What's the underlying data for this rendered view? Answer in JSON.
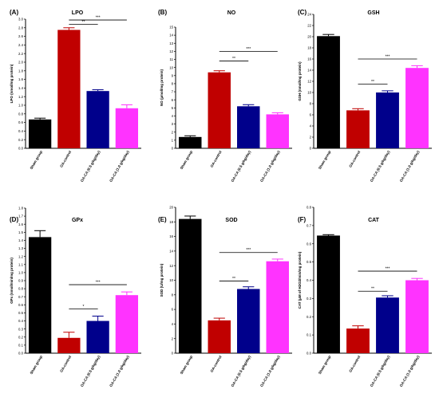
{
  "colors": {
    "sham": "#000000",
    "oa_control": "#c00000",
    "oaca_05": "#00008b",
    "oaca_10": "#ff33ff",
    "axis": "#000000"
  },
  "categories": [
    "Sham group",
    "OA-control",
    "OA-CA (0.5 g/kg/day)",
    "OA-CA (1.0 g/kg/day)"
  ],
  "chart_data": [
    {
      "type": "bar",
      "panel": "(A)",
      "title": "LPO",
      "ylabel": "LPO (nmol/mg protein)",
      "ylim": [
        0,
        3.0
      ],
      "yticks": [
        "0.0",
        "0.2",
        "0.4",
        "0.6",
        "0.8",
        "1.0",
        "1.2",
        "1.4",
        "1.6",
        "1.8",
        "2.0",
        "2.2",
        "2.4",
        "2.6",
        "2.8",
        "3.0"
      ],
      "categories": [
        "Sham group",
        "OA-control",
        "OA-CA (0.5 g/kg/day)",
        "OA-CA (1.0 g/kg/day)"
      ],
      "values": [
        0.67,
        2.75,
        1.33,
        0.93
      ],
      "errors": [
        0.03,
        0.05,
        0.03,
        0.08
      ],
      "sig": [
        {
          "from": 1,
          "to": 2,
          "label": "**",
          "y": 2.88
        },
        {
          "from": 1,
          "to": 3,
          "label": "***",
          "y": 2.98
        }
      ]
    },
    {
      "type": "bar",
      "panel": "(B)",
      "title": "NO",
      "ylabel": "NO (µmol/mg protein)",
      "ylim": [
        0,
        15
      ],
      "yticks": [
        "0",
        "1",
        "2",
        "3",
        "4",
        "5",
        "6",
        "7",
        "8",
        "9",
        "10",
        "11",
        "12",
        "13",
        "14",
        "15"
      ],
      "categories": [
        "Sham group",
        "OA-control",
        "OA-CA (0.5 g/kg/day)",
        "OA-CA (1.0 g/kg/day)"
      ],
      "values": [
        1.4,
        9.4,
        5.2,
        4.2
      ],
      "errors": [
        0.15,
        0.2,
        0.2,
        0.2
      ],
      "sig": [
        {
          "from": 1,
          "to": 2,
          "label": "**",
          "y": 10.8
        },
        {
          "from": 1,
          "to": 3,
          "label": "***",
          "y": 12.0
        }
      ]
    },
    {
      "type": "bar",
      "panel": "(C)",
      "title": "GSH",
      "ylabel": "GSH (nmol/mg protein)",
      "ylim": [
        0,
        24
      ],
      "yticks": [
        "0",
        "2",
        "4",
        "6",
        "8",
        "10",
        "12",
        "14",
        "16",
        "18",
        "20",
        "22",
        "24"
      ],
      "categories": [
        "Sham group",
        "OA-control",
        "OA-CA (0.5 g/kg/day)",
        "OA-CA (1.0 g/kg/day)"
      ],
      "values": [
        20.1,
        6.8,
        10.0,
        14.4
      ],
      "errors": [
        0.3,
        0.3,
        0.3,
        0.4
      ],
      "sig": [
        {
          "from": 1,
          "to": 2,
          "label": "**",
          "y": 11.5
        },
        {
          "from": 1,
          "to": 3,
          "label": "***",
          "y": 16.0
        }
      ]
    },
    {
      "type": "bar",
      "panel": "(D)",
      "title": "GPx",
      "ylabel": "GPx (nmol/min/mg protein)",
      "ylim": [
        0,
        1.8
      ],
      "yticks": [
        "0.0",
        "0.1",
        "0.2",
        "0.3",
        "0.4",
        "0.5",
        "0.6",
        "0.7",
        "0.8",
        "0.9",
        "1.0",
        "1.1",
        "1.2",
        "1.3",
        "1.4",
        "1.5",
        "1.6",
        "1.7",
        "1.8"
      ],
      "categories": [
        "Sham group",
        "OA-control",
        "OA-CA (0.5 g/kg/day)",
        "OA-CA (1.0 g/kg/day)"
      ],
      "values": [
        1.44,
        0.19,
        0.4,
        0.72
      ],
      "errors": [
        0.08,
        0.07,
        0.06,
        0.04
      ],
      "sig": [
        {
          "from": 1,
          "to": 2,
          "label": "*",
          "y": 0.55
        },
        {
          "from": 1,
          "to": 3,
          "label": "***",
          "y": 0.85
        }
      ]
    },
    {
      "type": "bar",
      "panel": "(E)",
      "title": "SOD",
      "ylabel": "SOD (U/mg protein)",
      "ylim": [
        0,
        20
      ],
      "yticks": [
        "0",
        "2",
        "4",
        "6",
        "8",
        "10",
        "12",
        "14",
        "16",
        "18",
        "20"
      ],
      "categories": [
        "Sham group",
        "OA-control",
        "OA-CA (0.5 g/kg/day)",
        "OA-CA (1.0 g/kg/day)"
      ],
      "values": [
        18.4,
        4.5,
        8.8,
        12.6
      ],
      "errors": [
        0.4,
        0.3,
        0.3,
        0.3
      ],
      "sig": [
        {
          "from": 1,
          "to": 2,
          "label": "**",
          "y": 9.9
        },
        {
          "from": 1,
          "to": 3,
          "label": "***",
          "y": 13.8
        }
      ]
    },
    {
      "type": "bar",
      "panel": "(F)",
      "title": "CAT",
      "ylabel": "CAT (µM of H2O2/min/mg protein)",
      "ylim": [
        0,
        0.8
      ],
      "yticks": [
        "0.0",
        "0.1",
        "0.2",
        "0.3",
        "0.4",
        "0.5",
        "0.6",
        "0.7",
        "0.8"
      ],
      "categories": [
        "Sham group",
        "OA-control",
        "OA-CA (0.5 g/kg/day)",
        "OA-CA (1.0 g/kg/day)"
      ],
      "values": [
        0.645,
        0.135,
        0.305,
        0.4
      ],
      "errors": [
        0.005,
        0.015,
        0.01,
        0.01
      ],
      "sig": [
        {
          "from": 1,
          "to": 2,
          "label": "**",
          "y": 0.34
        },
        {
          "from": 1,
          "to": 3,
          "label": "***",
          "y": 0.45
        }
      ]
    }
  ]
}
